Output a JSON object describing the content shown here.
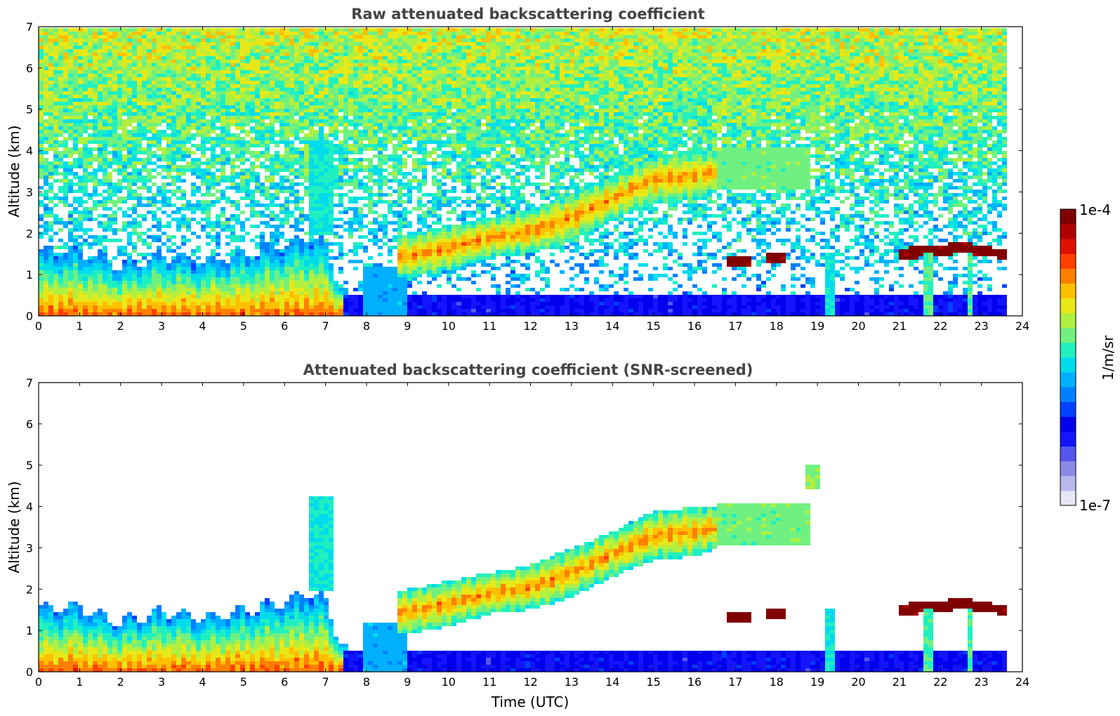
{
  "chart_data": [
    {
      "type": "heatmap",
      "title": "Raw attenuated backscattering coefficient",
      "xlabel": "",
      "ylabel": "Altitude (km)",
      "xlim": [
        0,
        24
      ],
      "ylim": [
        0,
        7
      ],
      "x_ticks": [
        0,
        1,
        2,
        3,
        4,
        5,
        6,
        7,
        8,
        9,
        10,
        11,
        12,
        13,
        14,
        15,
        16,
        17,
        18,
        19,
        20,
        21,
        22,
        23,
        24
      ],
      "y_ticks": [
        0,
        1,
        2,
        3,
        4,
        5,
        6,
        7
      ],
      "data_end_hour": 23.6,
      "screened": false,
      "noise_floor_hint": "high altitude noise field, increasing above 3 km",
      "features": [
        {
          "name": "boundary-layer",
          "x": [
            0,
            1,
            2,
            3,
            4,
            5,
            6,
            6.5,
            7,
            7.3,
            7.5
          ],
          "top_km": [
            1.5,
            1.6,
            1.2,
            1.5,
            1.3,
            1.5,
            1.7,
            1.9,
            1.8,
            0.9,
            0.6
          ]
        },
        {
          "name": "aerosol-layer",
          "x": [
            9,
            10,
            11,
            12,
            13,
            14,
            15,
            16,
            16.6
          ],
          "bottom_km": [
            0.9,
            1.1,
            1.4,
            1.5,
            1.8,
            2.3,
            2.7,
            2.8,
            3.0
          ],
          "top_km": [
            2.0,
            2.2,
            2.4,
            2.6,
            3.0,
            3.4,
            3.9,
            4.0,
            4.0
          ]
        },
        {
          "name": "plume-7h",
          "x_km": 6.9,
          "altitude_km": [
            2.0,
            4.3
          ]
        },
        {
          "name": "low-cloud",
          "x": [
            17.0,
            17.2,
            18.0,
            21.2,
            22.0,
            22.5,
            23.6
          ],
          "altitude_km": [
            1.3,
            1.3,
            1.4,
            1.5,
            1.6,
            1.7,
            1.5
          ]
        }
      ]
    },
    {
      "type": "heatmap",
      "title": "Attenuated backscattering coefficient (SNR-screened)",
      "xlabel": "Time (UTC)",
      "ylabel": "Altitude (km)",
      "xlim": [
        0,
        24
      ],
      "ylim": [
        0,
        7
      ],
      "x_ticks": [
        0,
        1,
        2,
        3,
        4,
        5,
        6,
        7,
        8,
        9,
        10,
        11,
        12,
        13,
        14,
        15,
        16,
        17,
        18,
        19,
        20,
        21,
        22,
        23,
        24
      ],
      "y_ticks": [
        0,
        1,
        2,
        3,
        4,
        5,
        6,
        7
      ],
      "data_end_hour": 23.6,
      "screened": true
    }
  ],
  "colorbar": {
    "label": "1/m/sr",
    "max_label": "1e-4",
    "min_label": "1e-7",
    "scale": "log",
    "colors": [
      "#e6e6f7",
      "#b8b8ee",
      "#8a8ae6",
      "#5656ee",
      "#1414ff",
      "#0000ee",
      "#0040ff",
      "#0080ff",
      "#00b0ff",
      "#00dcec",
      "#20f0c0",
      "#70f080",
      "#b0f040",
      "#e8e818",
      "#ffc000",
      "#ff8000",
      "#ff4000",
      "#e01000",
      "#b00000",
      "#800000"
    ]
  }
}
